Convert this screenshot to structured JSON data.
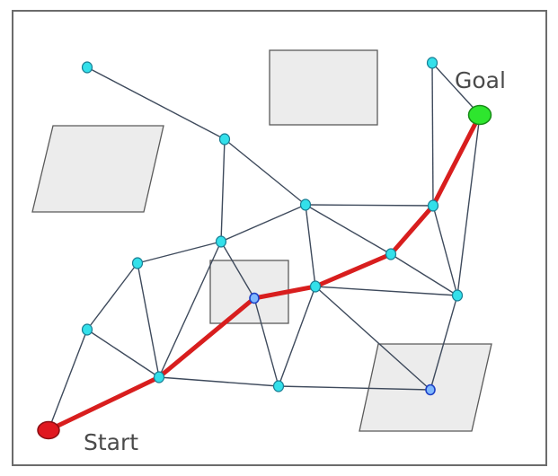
{
  "labels": {
    "start": "Start",
    "goal": "Goal"
  },
  "colors": {
    "path": "#d81e1e",
    "node": "#33e0ea",
    "path_node": "#7fb8ff",
    "start": "#e0171f",
    "goal": "#2ee62e",
    "obstacle": "#ececec",
    "edge": "#3e4a5c"
  }
}
